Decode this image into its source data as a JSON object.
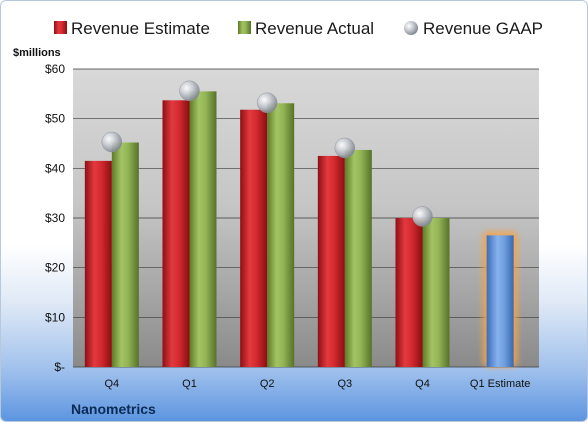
{
  "chart_data": {
    "type": "bar",
    "title": "",
    "ylabel": "$millions",
    "footer_label": "Nanometrics",
    "categories": [
      "Q4",
      "Q1",
      "Q2",
      "Q3",
      "Q4",
      "Q1 Estimate"
    ],
    "y_ticks": [
      "$-",
      "$10",
      "$20",
      "$30",
      "$40",
      "$50",
      "$60"
    ],
    "ylim": [
      0,
      60
    ],
    "grid": true,
    "legend_placement": "top",
    "series": [
      {
        "name": "Revenue Estimate",
        "marker": "bar",
        "color": "#cc2027",
        "values": [
          41.5,
          53.7,
          51.8,
          42.5,
          30.0,
          null
        ]
      },
      {
        "name": "Revenue Actual",
        "marker": "bar",
        "color": "#8aab4a",
        "values": [
          45.2,
          55.5,
          53.1,
          43.7,
          30.0,
          null
        ]
      },
      {
        "name": "Revenue GAAP",
        "marker": "circle",
        "color": "#b8bcc4",
        "values": [
          45.3,
          55.6,
          53.2,
          44.1,
          30.3,
          null
        ]
      },
      {
        "name": "Q1 Estimate",
        "marker": "bar",
        "color": "#5b8fd6",
        "highlight_color": "#f5a34a",
        "values": [
          null,
          null,
          null,
          null,
          null,
          26.5
        ]
      }
    ]
  }
}
